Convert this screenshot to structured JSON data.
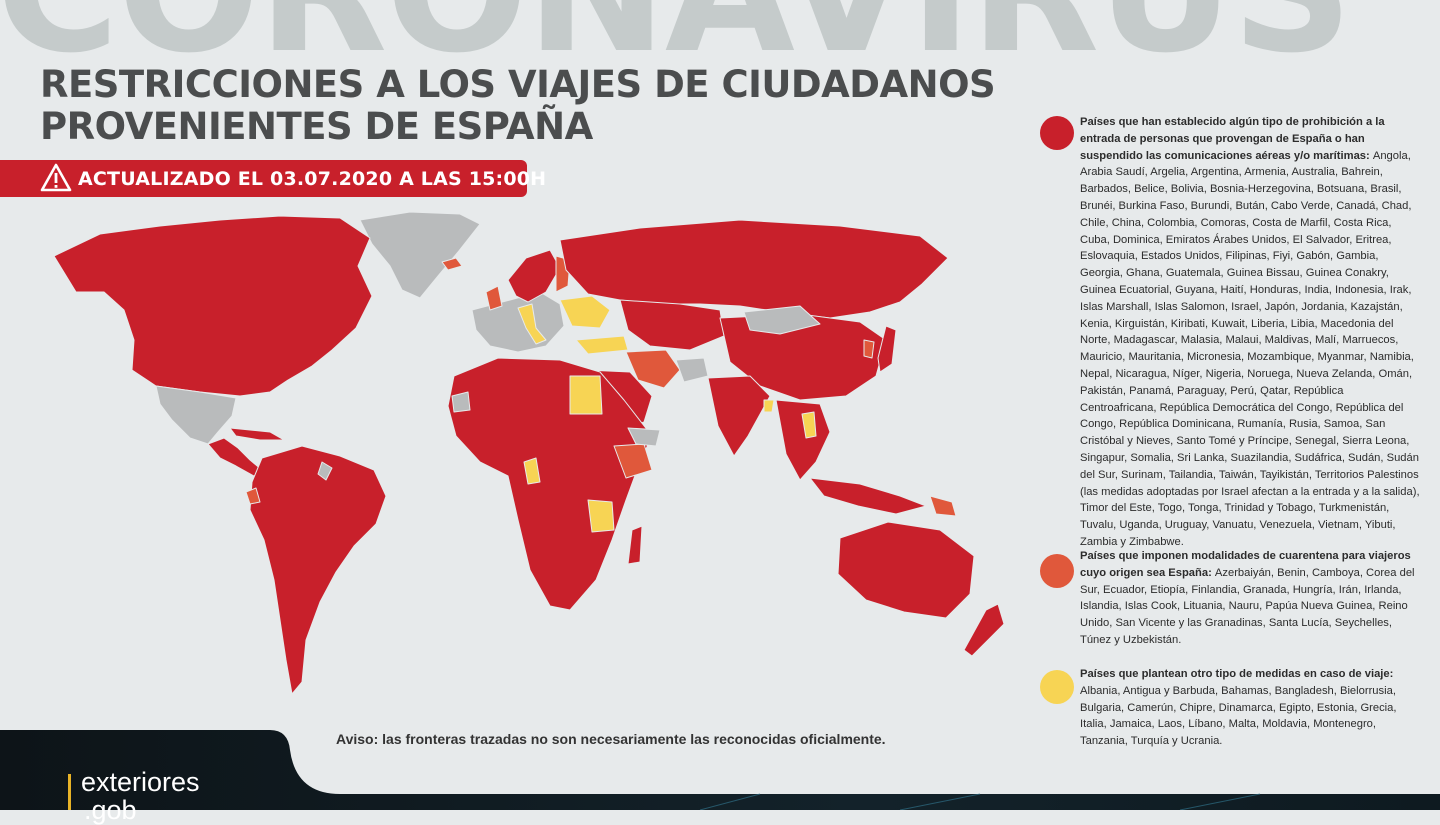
{
  "background_word": "CORONAVIRUS",
  "title": {
    "line1": "RESTRICCIONES A LOS VIAJES DE CIUDADANOS",
    "line2": "PROVENIENTES DE ESPAÑA"
  },
  "updated": "ACTUALIZADO EL 03.07.2020 A LAS 15:00H",
  "notice": "Aviso: las fronteras trazadas no son necesariamente las reconocidas oficialmente.",
  "colors": {
    "background": "#e7eaeb",
    "ocean": "#e7eaeb",
    "prohibition": "#c8202b",
    "quarantine": "#e0583b",
    "other_measures": "#f7d454",
    "no_restriction": "#b9bbbc",
    "title": "#4b4d4e"
  },
  "legend": [
    {
      "color_key": "prohibition",
      "heading": "Países que han establecido algún tipo de prohibición a la entrada de personas que provengan de España o han suspendido las comunicaciones aéreas y/o marítimas:",
      "countries": "Angola, Arabia Saudí, Argelia, Argentina, Armenia, Australia, Bahrein, Barbados, Belice, Bolivia, Bosnia-Herzegovina, Botsuana, Brasil, Brunéi, Burkina Faso, Burundi, Bután, Cabo Verde, Canadá, Chad, Chile, China, Colombia, Comoras, Costa de Marfil, Costa Rica, Cuba, Dominica, Emiratos Árabes Unidos, El Salvador, Eritrea, Eslovaquia, Estados Unidos, Filipinas, Fiyi, Gabón, Gambia, Georgia, Ghana, Guatemala, Guinea Bissau, Guinea Conakry, Guinea Ecuatorial, Guyana, Haití, Honduras, India, Indonesia, Irak, Islas Marshall, Islas Salomon, Israel, Japón, Jordania, Kazajstán, Kenia, Kirguistán, Kiribati, Kuwait, Liberia, Libia, Macedonia del Norte, Madagascar, Malasia, Malaui, Maldivas, Malí, Marruecos, Mauricio, Mauritania, Micronesia, Mozambique, Myanmar, Namibia, Nepal, Nicaragua, Níger, Nigeria, Noruega, Nueva Zelanda, Omán, Pakistán, Panamá, Paraguay, Perú, Qatar, República Centroafricana, República Democrática del Congo, República del Congo, República Dominicana, Rumanía, Rusia, Samoa, San Cristóbal y Nieves, Santo Tomé y Príncipe, Senegal, Sierra Leona, Singapur, Somalia, Sri Lanka, Suazilandia, Sudáfrica, Sudán, Sudán del Sur, Surinam, Tailandia, Taiwán, Tayikistán, Territorios Palestinos (las medidas adoptadas por Israel afectan a la entrada y a la salida), Timor del Este, Togo, Tonga, Trinidad y Tobago, Turkmenistán, Tuvalu, Uganda, Uruguay, Vanuatu, Venezuela, Vietnam, Yibuti, Zambia y Zimbabwe."
    },
    {
      "color_key": "quarantine",
      "heading": "Países que imponen modalidades de cuarentena para viajeros cuyo origen sea España:",
      "countries": "Azerbaiyán, Benin, Camboya, Corea del Sur, Ecuador, Etiopía, Finlandia, Granada, Hungría, Irán, Irlanda, Islandia, Islas Cook, Lituania, Nauru, Papúa Nueva Guinea, Reino Unido, San Vicente y las Granadinas, Santa Lucía, Seychelles, Túnez y Uzbekistán."
    },
    {
      "color_key": "other_measures",
      "heading": "Países que plantean otro tipo de medidas en caso de viaje:",
      "countries": "Albania, Antigua y Barbuda, Bahamas, Bangladesh, Bielorrusia, Bulgaria, Camerún, Chipre, Dinamarca, Egipto, Estonia, Grecia, Italia, Jamaica, Laos, Líbano, Malta, Moldavia, Montenegro, Tanzania, Turquía y Ucrania."
    }
  ],
  "brand": {
    "line1": "exteriores",
    "line2": ".gob"
  },
  "icons": [
    "warning-icon",
    "world-map"
  ]
}
